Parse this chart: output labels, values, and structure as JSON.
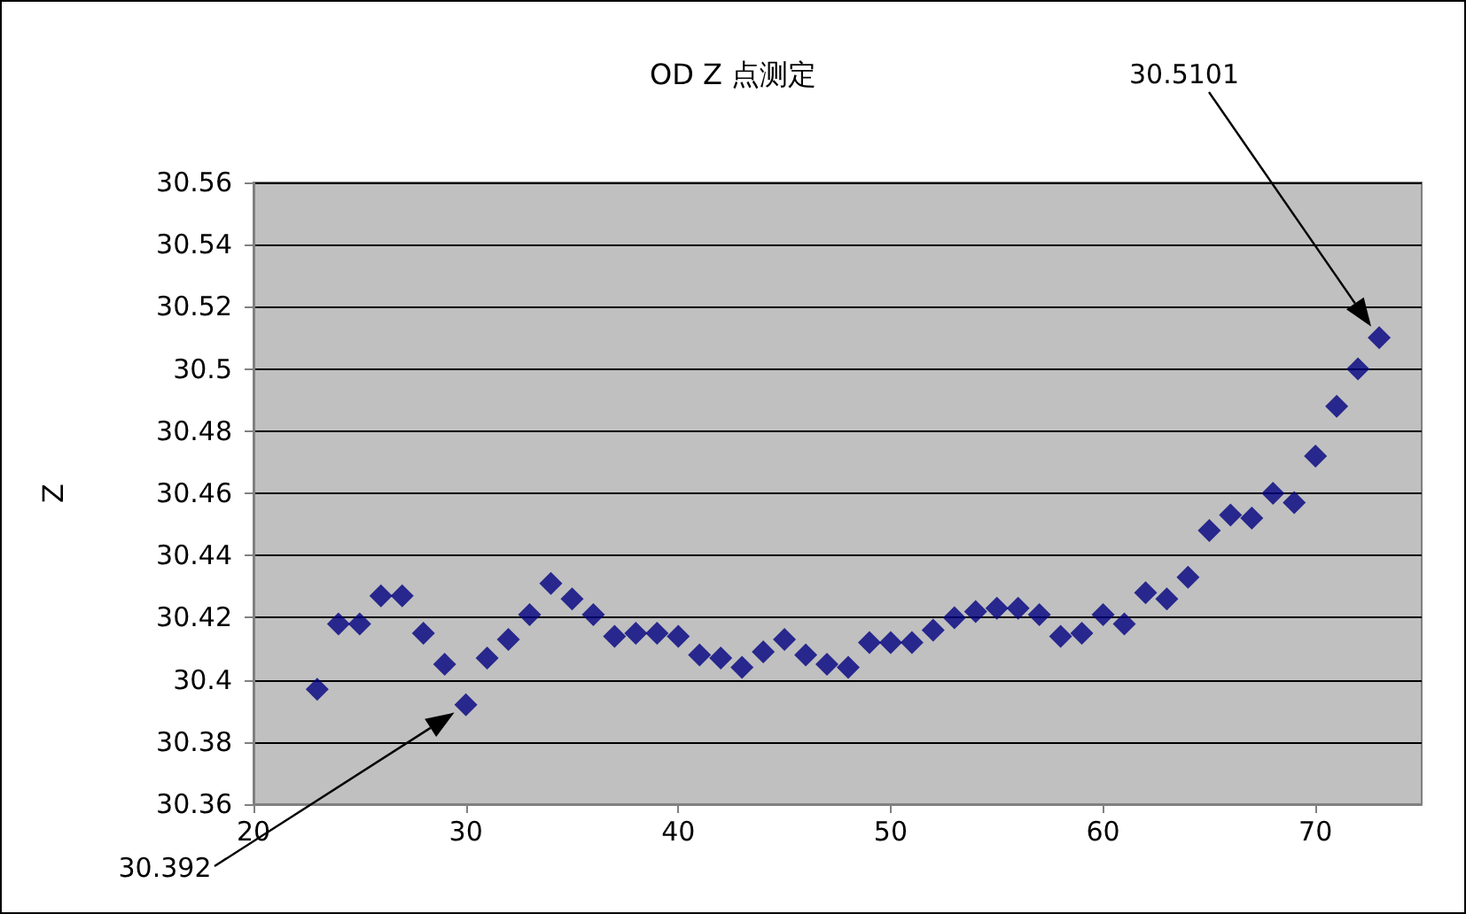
{
  "chart_data": {
    "type": "scatter",
    "title": "OD Z 点测定",
    "ylabel": "Z",
    "x": [
      23,
      24,
      25,
      26,
      27,
      28,
      29,
      30,
      31,
      32,
      33,
      34,
      35,
      36,
      37,
      38,
      39,
      40,
      41,
      42,
      43,
      44,
      45,
      46,
      47,
      48,
      49,
      50,
      51,
      52,
      53,
      54,
      55,
      56,
      57,
      58,
      59,
      60,
      61,
      62,
      63,
      64,
      65,
      66,
      67,
      68,
      69,
      70,
      71,
      72,
      73
    ],
    "series": [
      {
        "color": "#000080",
        "values": [
          30.397,
          30.418,
          30.418,
          30.427,
          30.427,
          30.415,
          30.405,
          30.392,
          30.407,
          30.413,
          30.421,
          30.431,
          30.426,
          30.421,
          30.414,
          30.415,
          30.415,
          30.414,
          30.408,
          30.407,
          30.404,
          30.409,
          30.413,
          30.408,
          30.405,
          30.404,
          30.412,
          30.412,
          30.412,
          30.416,
          30.42,
          30.422,
          30.423,
          30.423,
          30.421,
          30.414,
          30.415,
          30.421,
          30.418,
          30.428,
          30.426,
          30.433,
          30.448,
          30.453,
          30.452,
          30.46,
          30.457,
          30.472,
          30.488,
          30.5,
          30.5101
        ]
      }
    ],
    "xlim": [
      20,
      75
    ],
    "xticks": [
      20,
      30,
      40,
      50,
      60,
      70
    ],
    "ylim": [
      30.36,
      30.56
    ],
    "yticks": [
      30.36,
      30.38,
      30.4,
      30.42,
      30.44,
      30.46,
      30.48,
      30.5,
      30.52,
      30.54,
      30.56
    ],
    "grid": "y",
    "marker": "diamond",
    "annotations": [
      "30.392",
      "30.5101"
    ]
  }
}
